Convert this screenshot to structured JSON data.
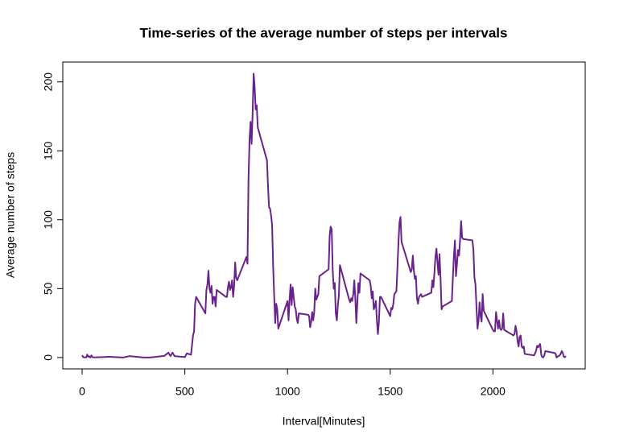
{
  "chart_data": {
    "type": "line",
    "title": "Time-series of the average number of steps per intervals",
    "x_label": "Interval[Minutes]",
    "y_label": "Average number of steps",
    "color": "#68228b",
    "xlim": [
      -94.2,
      2449.2
    ],
    "ylim": [
      -8.25,
      214.42
    ],
    "xticks": [
      0,
      500,
      1000,
      1500,
      2000
    ],
    "yticks": [
      0,
      50,
      100,
      150,
      200
    ],
    "x": [
      0,
      5,
      10,
      15,
      20,
      25,
      30,
      35,
      40,
      45,
      50,
      55,
      100,
      130,
      200,
      230,
      300,
      330,
      400,
      420,
      430,
      440,
      450,
      500,
      510,
      530,
      540,
      545,
      550,
      555,
      600,
      605,
      610,
      615,
      620,
      625,
      630,
      635,
      640,
      645,
      650,
      655,
      700,
      705,
      710,
      715,
      720,
      725,
      730,
      735,
      740,
      745,
      750,
      755,
      800,
      805,
      810,
      815,
      820,
      825,
      830,
      835,
      840,
      845,
      850,
      855,
      900,
      905,
      910,
      915,
      920,
      925,
      930,
      935,
      940,
      945,
      950,
      955,
      1000,
      1005,
      1010,
      1015,
      1020,
      1025,
      1030,
      1035,
      1040,
      1045,
      1050,
      1055,
      1100,
      1105,
      1110,
      1115,
      1120,
      1125,
      1130,
      1135,
      1140,
      1145,
      1150,
      1155,
      1200,
      1205,
      1210,
      1215,
      1220,
      1225,
      1230,
      1235,
      1240,
      1245,
      1250,
      1255,
      1300,
      1305,
      1310,
      1315,
      1320,
      1325,
      1330,
      1335,
      1340,
      1345,
      1350,
      1355,
      1400,
      1405,
      1410,
      1415,
      1420,
      1425,
      1430,
      1435,
      1440,
      1445,
      1450,
      1455,
      1500,
      1505,
      1510,
      1515,
      1520,
      1525,
      1530,
      1535,
      1540,
      1545,
      1550,
      1555,
      1600,
      1605,
      1610,
      1615,
      1620,
      1625,
      1630,
      1635,
      1640,
      1645,
      1650,
      1655,
      1700,
      1705,
      1710,
      1715,
      1720,
      1725,
      1730,
      1735,
      1740,
      1745,
      1750,
      1755,
      1800,
      1805,
      1810,
      1815,
      1820,
      1825,
      1830,
      1835,
      1840,
      1845,
      1850,
      1855,
      1900,
      1905,
      1910,
      1915,
      1920,
      1925,
      1930,
      1935,
      1940,
      1945,
      1950,
      1955,
      2000,
      2005,
      2010,
      2015,
      2020,
      2025,
      2030,
      2035,
      2040,
      2045,
      2050,
      2055,
      2100,
      2105,
      2110,
      2115,
      2120,
      2125,
      2130,
      2135,
      2140,
      2145,
      2150,
      2155,
      2200,
      2205,
      2210,
      2215,
      2220,
      2225,
      2230,
      2235,
      2240,
      2245,
      2250,
      2255,
      2300,
      2305,
      2310,
      2315,
      2320,
      2325,
      2330,
      2335,
      2340,
      2345,
      2350,
      2355
    ],
    "values": [
      1.7,
      0.3,
      0.1,
      0.2,
      0.1,
      2.1,
      0.5,
      0.9,
      0,
      1.5,
      0.3,
      0.1,
      0.3,
      0.5,
      0,
      1,
      0,
      0,
      1.2,
      3.5,
      1,
      3.5,
      1,
      0.3,
      3,
      2,
      16,
      19,
      39,
      44,
      32,
      49,
      53,
      63,
      50,
      47,
      52,
      39,
      44,
      44,
      37,
      49,
      44,
      44,
      51,
      55,
      49,
      51,
      56,
      44,
      52,
      69,
      58,
      56,
      73,
      68,
      129,
      158,
      171,
      155,
      177,
      206,
      196,
      180,
      183,
      167,
      143,
      124,
      109,
      108,
      103,
      96,
      66,
      45,
      25,
      39,
      35,
      21,
      41,
      27,
      42,
      53,
      38,
      51,
      44,
      37,
      35,
      28,
      25,
      32,
      31,
      30,
      22,
      26,
      33,
      27,
      33,
      50,
      42,
      44,
      46,
      59,
      64,
      88,
      95,
      93,
      63,
      50,
      54,
      32,
      27,
      38,
      45,
      67,
      42,
      40,
      43,
      41,
      46,
      56,
      43,
      25,
      40,
      54,
      47,
      61,
      56,
      52,
      43,
      48,
      35,
      37,
      41,
      27,
      17,
      26,
      44,
      44,
      30,
      36,
      35,
      39,
      46,
      47,
      48,
      65,
      83,
      98,
      102,
      84,
      62,
      64,
      74,
      63,
      57,
      59,
      43,
      39,
      44,
      45,
      46,
      44,
      47,
      56,
      51,
      61,
      73,
      79,
      69,
      60,
      75,
      57,
      35,
      37,
      41,
      58,
      74,
      85,
      59,
      68,
      78,
      74,
      85,
      99,
      87,
      86,
      85,
      78,
      58,
      53,
      36,
      21,
      27,
      40,
      30,
      26,
      46,
      34,
      20,
      19,
      19,
      33,
      27,
      21,
      27,
      21,
      20,
      21,
      32,
      20,
      16,
      17,
      23,
      19,
      12,
      8,
      15,
      16,
      8,
      7,
      8,
      2.6,
      1.5,
      3,
      4.8,
      8.5,
      7.4,
      8.7,
      9.8,
      2.2,
      0.3,
      0.1,
      1.6,
      4.6,
      3.3,
      2.8,
      0,
      0.8,
      1,
      1.6,
      2.6,
      4.7,
      3.3,
      0.6,
      0.2,
      1.1
    ]
  }
}
